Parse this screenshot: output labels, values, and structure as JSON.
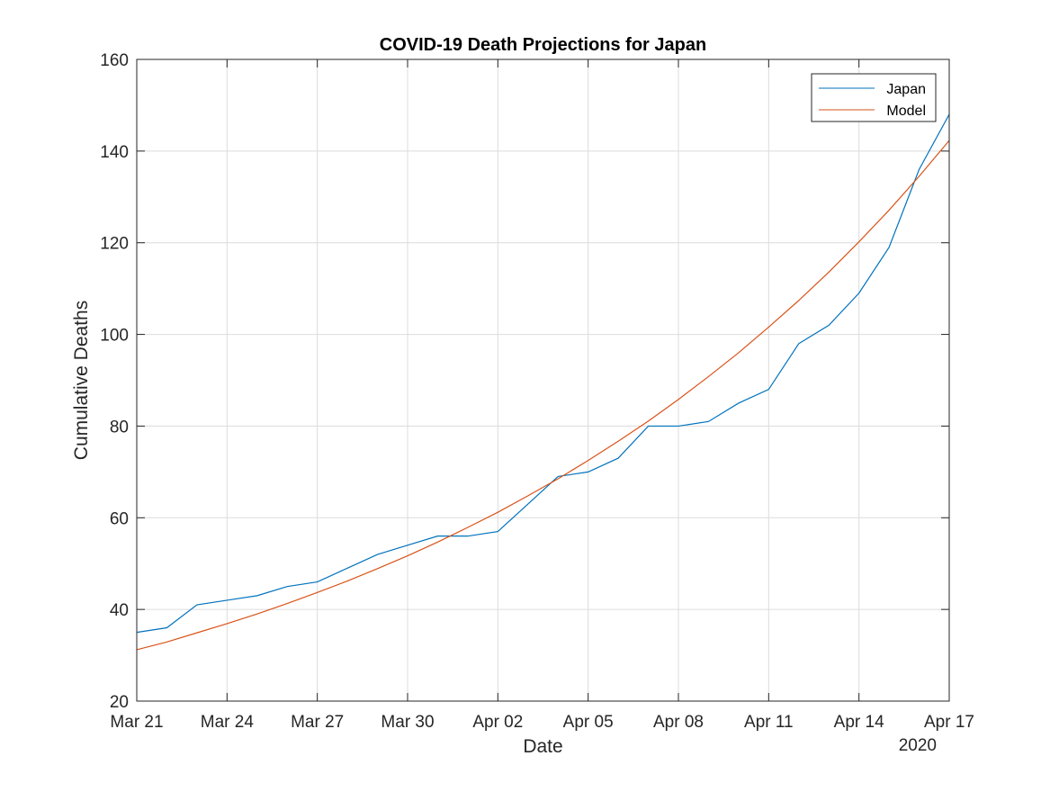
{
  "chart_data": {
    "type": "line",
    "title": "COVID-19 Death Projections for Japan",
    "xlabel": "Date",
    "ylabel": "Cumulative Deaths",
    "x_year_label": "2020",
    "x_range": [
      "2020-03-21",
      "2020-04-17"
    ],
    "ylim": [
      20,
      160
    ],
    "grid": true,
    "legend_position": "top-right",
    "x_ticks": [
      {
        "date": "2020-03-21",
        "label": "Mar 21"
      },
      {
        "date": "2020-03-24",
        "label": "Mar 24"
      },
      {
        "date": "2020-03-27",
        "label": "Mar 27"
      },
      {
        "date": "2020-03-30",
        "label": "Mar 30"
      },
      {
        "date": "2020-04-02",
        "label": "Apr 02"
      },
      {
        "date": "2020-04-05",
        "label": "Apr 05"
      },
      {
        "date": "2020-04-08",
        "label": "Apr 08"
      },
      {
        "date": "2020-04-11",
        "label": "Apr 11"
      },
      {
        "date": "2020-04-14",
        "label": "Apr 14"
      },
      {
        "date": "2020-04-17",
        "label": "Apr 17"
      }
    ],
    "y_ticks": [
      20,
      40,
      60,
      80,
      100,
      120,
      140,
      160
    ],
    "series": [
      {
        "name": "Japan",
        "color": "#0072BD",
        "x": [
          "2020-03-21",
          "2020-03-22",
          "2020-03-23",
          "2020-03-24",
          "2020-03-25",
          "2020-03-26",
          "2020-03-27",
          "2020-03-28",
          "2020-03-29",
          "2020-03-30",
          "2020-03-31",
          "2020-04-01",
          "2020-04-02",
          "2020-04-03",
          "2020-04-04",
          "2020-04-05",
          "2020-04-06",
          "2020-04-07",
          "2020-04-08",
          "2020-04-09",
          "2020-04-10",
          "2020-04-11",
          "2020-04-12",
          "2020-04-13",
          "2020-04-14",
          "2020-04-15",
          "2020-04-16",
          "2020-04-17"
        ],
        "y": [
          35,
          36,
          41,
          42,
          43,
          45,
          46,
          49,
          52,
          54,
          56,
          56,
          57,
          63,
          69,
          70,
          73,
          80,
          80,
          81,
          85,
          88,
          98,
          102,
          109,
          119,
          136,
          148
        ]
      },
      {
        "name": "Model",
        "color": "#D95319",
        "x": [
          "2020-03-21",
          "2020-03-22",
          "2020-03-23",
          "2020-03-24",
          "2020-03-25",
          "2020-03-26",
          "2020-03-27",
          "2020-03-28",
          "2020-03-29",
          "2020-03-30",
          "2020-03-31",
          "2020-04-01",
          "2020-04-02",
          "2020-04-03",
          "2020-04-04",
          "2020-04-05",
          "2020-04-06",
          "2020-04-07",
          "2020-04-08",
          "2020-04-09",
          "2020-04-10",
          "2020-04-11",
          "2020-04-12",
          "2020-04-13",
          "2020-04-14",
          "2020-04-15",
          "2020-04-16",
          "2020-04-17"
        ],
        "y": [
          31.2,
          32.9,
          34.9,
          36.9,
          39.0,
          41.3,
          43.7,
          46.2,
          48.9,
          51.7,
          54.7,
          57.9,
          61.2,
          64.8,
          68.5,
          72.5,
          76.7,
          81.1,
          85.8,
          90.8,
          96.0,
          101.6,
          107.4,
          113.6,
          120.2,
          127.1,
          134.5,
          142.3
        ]
      }
    ]
  }
}
